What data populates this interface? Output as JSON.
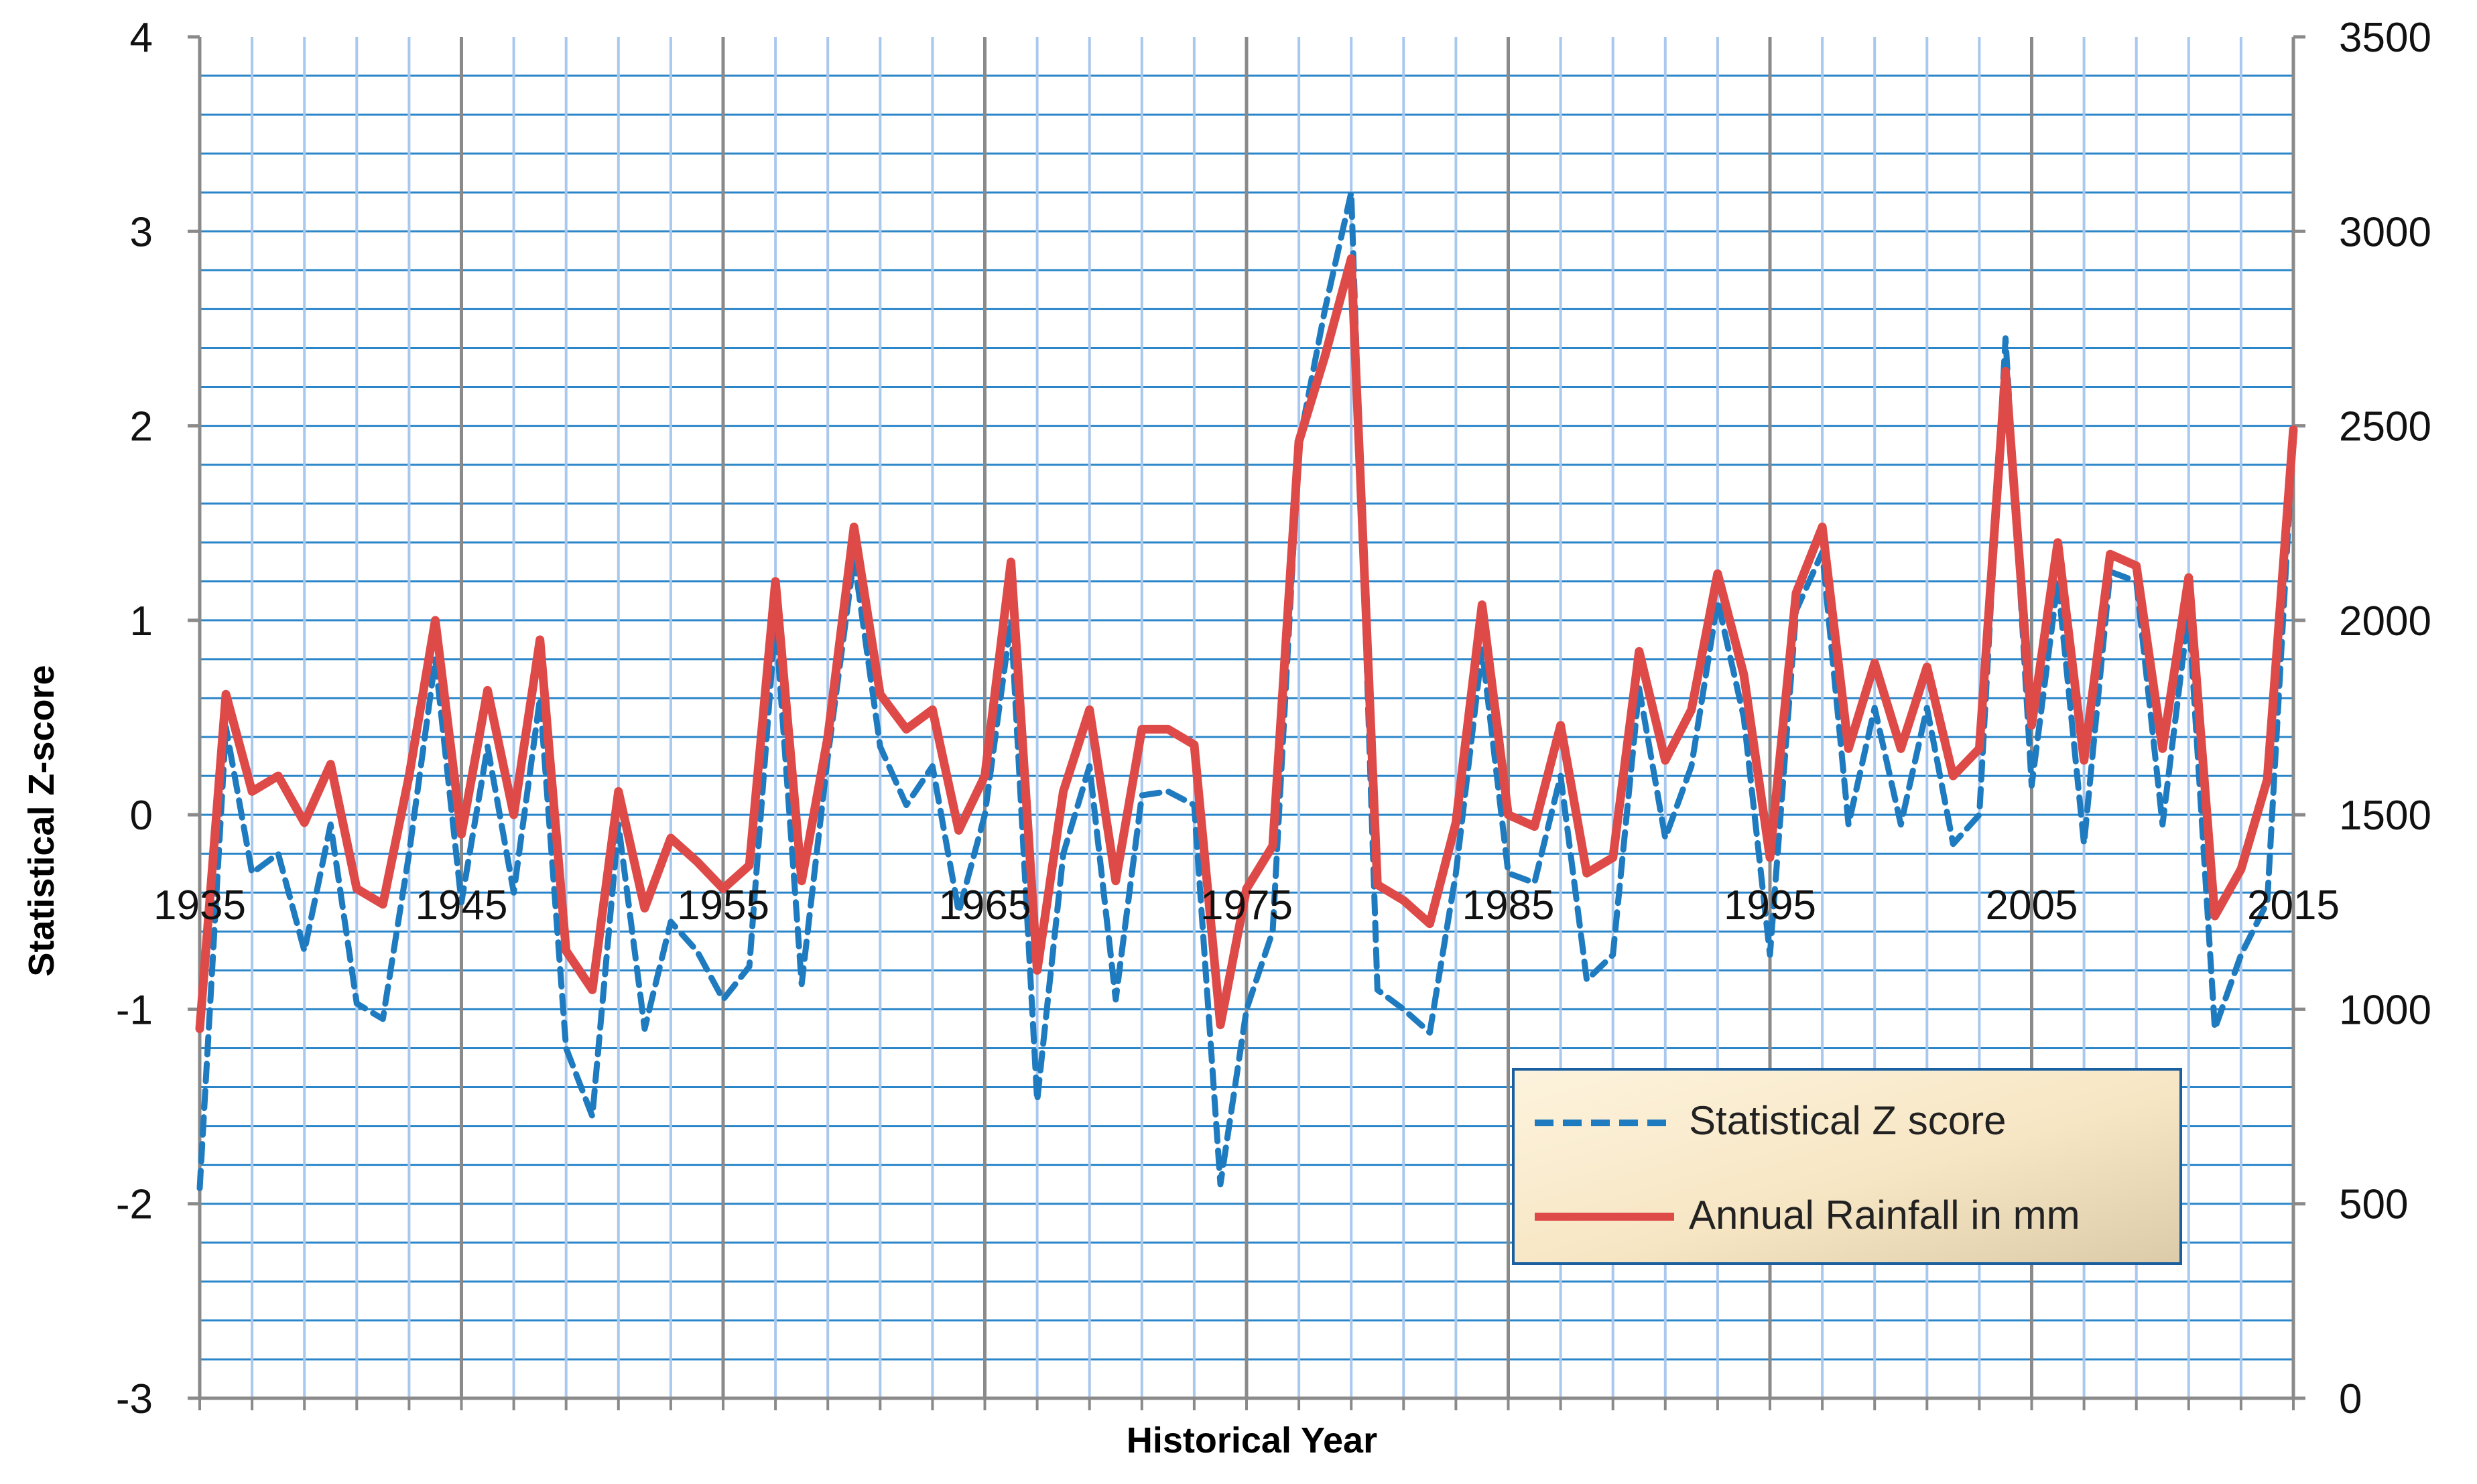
{
  "chart_data": {
    "type": "line",
    "title": "",
    "xlabel": "Historical Year",
    "ylabel": "Statistical Z-score",
    "y2label": "",
    "xlim": [
      1935,
      2015
    ],
    "ylim": [
      -3,
      4
    ],
    "y2lim": [
      0,
      3500
    ],
    "x_ticks": [
      1935,
      1945,
      1955,
      1965,
      1975,
      1985,
      1995,
      2005,
      2015
    ],
    "y_ticks": [
      -3,
      -2,
      -1,
      0,
      1,
      2,
      3,
      4
    ],
    "y2_ticks": [
      0,
      500,
      1000,
      1500,
      2000,
      2500,
      3000,
      3500
    ],
    "grid": true,
    "legend_position": "bottom-right",
    "x": [
      1935,
      1936,
      1937,
      1938,
      1939,
      1940,
      1941,
      1942,
      1943,
      1944,
      1945,
      1946,
      1947,
      1948,
      1949,
      1950,
      1951,
      1952,
      1953,
      1954,
      1955,
      1956,
      1957,
      1958,
      1959,
      1960,
      1961,
      1962,
      1963,
      1964,
      1965,
      1966,
      1967,
      1968,
      1969,
      1970,
      1971,
      1972,
      1973,
      1974,
      1975,
      1976,
      1977,
      1978,
      1979,
      1980,
      1981,
      1982,
      1983,
      1984,
      1985,
      1986,
      1987,
      1988,
      1989,
      1990,
      1991,
      1992,
      1993,
      1994,
      1995,
      1996,
      1997,
      1998,
      1999,
      2000,
      2001,
      2002,
      2003,
      2004,
      2005,
      2006,
      2007,
      2008,
      2009,
      2010,
      2011,
      2012,
      2013,
      2014,
      2015
    ],
    "series": [
      {
        "name": "Statistical Z score",
        "axis": "left",
        "style": "dashed",
        "color": "#1f7bc0",
        "values": [
          -1.92,
          0.45,
          -0.3,
          -0.2,
          -0.7,
          -0.05,
          -0.97,
          -1.05,
          -0.2,
          0.8,
          -0.45,
          0.35,
          -0.4,
          0.6,
          -1.2,
          -1.55,
          -0.05,
          -1.1,
          -0.55,
          -0.7,
          -0.95,
          -0.78,
          1.0,
          -0.87,
          0.3,
          1.32,
          0.35,
          0.05,
          0.25,
          -0.5,
          0.0,
          1.0,
          -1.47,
          -0.2,
          0.25,
          -0.95,
          0.1,
          0.12,
          0.05,
          -1.9,
          -1.0,
          -0.6,
          1.9,
          2.6,
          3.2,
          -0.9,
          -1.0,
          -1.12,
          -0.3,
          0.85,
          -0.3,
          -0.35,
          0.2,
          -0.85,
          -0.72,
          0.65,
          -0.12,
          0.25,
          1.1,
          0.5,
          -0.72,
          1.05,
          1.35,
          -0.05,
          0.55,
          -0.05,
          0.55,
          -0.15,
          0.0,
          2.45,
          0.15,
          1.2,
          -0.15,
          1.25,
          1.2,
          -0.05,
          1.05,
          -1.1,
          -0.72,
          -0.45,
          1.95
        ]
      },
      {
        "name": "Annual Rainfall in mm",
        "axis": "right",
        "style": "solid",
        "color": "#de4a48",
        "values": [
          950,
          1810,
          1560,
          1600,
          1480,
          1630,
          1310,
          1270,
          1600,
          2000,
          1450,
          1820,
          1500,
          1950,
          1150,
          1050,
          1560,
          1260,
          1440,
          1380,
          1310,
          1370,
          2100,
          1330,
          1700,
          2240,
          1810,
          1720,
          1770,
          1460,
          1600,
          2150,
          1100,
          1560,
          1770,
          1330,
          1720,
          1720,
          1680,
          960,
          1310,
          1420,
          2460,
          2680,
          2930,
          1320,
          1280,
          1220,
          1480,
          2040,
          1500,
          1470,
          1730,
          1350,
          1390,
          1920,
          1640,
          1770,
          2120,
          1860,
          1390,
          2070,
          2240,
          1670,
          1890,
          1670,
          1880,
          1600,
          1670,
          2640,
          1730,
          2200,
          1640,
          2170,
          2140,
          1670,
          2110,
          1240,
          1360,
          1590,
          2490
        ]
      }
    ]
  }
}
